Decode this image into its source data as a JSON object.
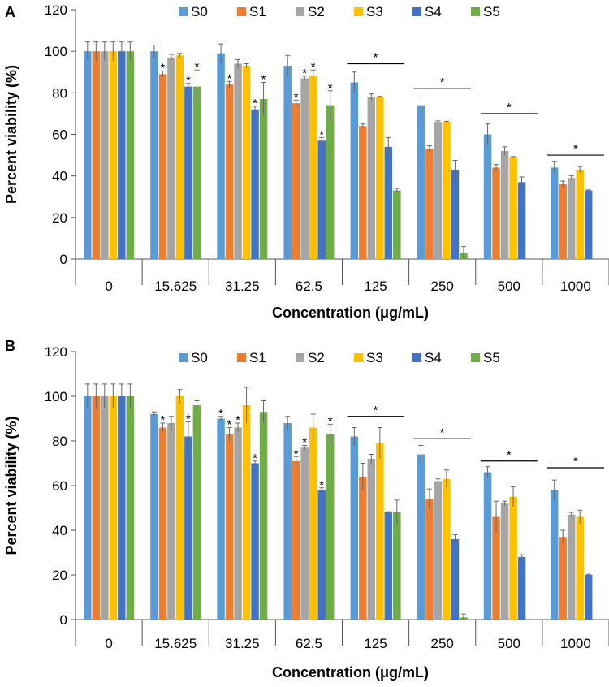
{
  "chart_data": [
    {
      "panel_label": "A",
      "type": "bar",
      "xlabel": "Concentration (μg/mL)",
      "ylabel": "Percent viability (%)",
      "ylim": [
        0,
        120
      ],
      "ytick_step": 20,
      "yticks": [
        "0",
        "20",
        "40",
        "60",
        "80",
        "100",
        "120"
      ],
      "categories": [
        "0",
        "15.625",
        "31.25",
        "62.5",
        "125",
        "250",
        "500",
        "1000"
      ],
      "legend_position": "top",
      "series": [
        {
          "name": "S0",
          "color": "#5b9bd5",
          "values": [
            100,
            100,
            99,
            93,
            85,
            74,
            60,
            44
          ],
          "errors": [
            4.5,
            3,
            4.5,
            5,
            5,
            4,
            5,
            3
          ]
        },
        {
          "name": "S1",
          "color": "#ed7d31",
          "values": [
            100,
            89,
            84,
            75,
            64,
            53,
            44,
            36
          ],
          "errors": [
            4.5,
            1.5,
            1.5,
            1.5,
            1,
            1.5,
            1.5,
            1.5
          ]
        },
        {
          "name": "S2",
          "color": "#a5a5a5",
          "values": [
            100,
            97,
            94,
            87,
            78,
            66,
            52,
            39
          ],
          "errors": [
            4.5,
            1.5,
            2,
            1,
            1.5,
            0.5,
            2,
            1
          ]
        },
        {
          "name": "S3",
          "color": "#ffc000",
          "values": [
            100,
            98,
            93,
            88,
            78,
            66,
            49,
            43
          ],
          "errors": [
            4.5,
            1,
            1,
            3,
            0.3,
            0.3,
            0.3,
            1.5
          ]
        },
        {
          "name": "S4",
          "color": "#4472c4",
          "values": [
            100,
            83,
            72,
            57,
            54,
            43,
            37,
            33
          ],
          "errors": [
            4.5,
            1.5,
            1.5,
            1.5,
            4.5,
            4.5,
            2.5,
            0.3
          ]
        },
        {
          "name": "S5",
          "color": "#70ad47",
          "values": [
            100,
            83,
            77,
            74,
            33,
            3,
            0,
            0
          ],
          "errors": [
            4.5,
            8,
            8,
            7,
            1,
            3,
            0,
            0
          ]
        }
      ],
      "annotations": [
        {
          "text": "*",
          "category": "15.625",
          "series": [
            "S1",
            "S4",
            "S5"
          ]
        },
        {
          "text": "*",
          "category": "31.25",
          "series": [
            "S1",
            "S4",
            "S5"
          ]
        },
        {
          "text": "*",
          "category": "62.5",
          "series": [
            "S1",
            "S2",
            "S3",
            "S4",
            "S5"
          ]
        },
        {
          "text": "*",
          "category": "125",
          "bracket": true,
          "value": 94
        },
        {
          "text": "*",
          "category": "250",
          "bracket": true,
          "value": 82
        },
        {
          "text": "*",
          "category": "500",
          "bracket": true,
          "value": 70
        },
        {
          "text": "*",
          "category": "1000",
          "bracket": true,
          "value": 50
        }
      ]
    },
    {
      "panel_label": "B",
      "type": "bar",
      "xlabel": "Concentration (μg/mL)",
      "ylabel": "Percent viability (%)",
      "ylim": [
        0,
        120
      ],
      "ytick_step": 20,
      "yticks": [
        "0",
        "20",
        "40",
        "60",
        "80",
        "100",
        "120"
      ],
      "categories": [
        "0",
        "15.625",
        "31.25",
        "62.5",
        "125",
        "250",
        "500",
        "1000"
      ],
      "legend_position": "top",
      "series": [
        {
          "name": "S0",
          "color": "#5b9bd5",
          "values": [
            100,
            92,
            90,
            88,
            82,
            74,
            66,
            58
          ],
          "errors": [
            5.5,
            1,
            1,
            3,
            4,
            4,
            2.5,
            4.5
          ]
        },
        {
          "name": "S1",
          "color": "#ed7d31",
          "values": [
            100,
            86,
            83,
            71,
            64,
            54,
            46,
            37
          ],
          "errors": [
            5.5,
            2,
            3,
            2,
            6,
            4.5,
            7,
            3
          ]
        },
        {
          "name": "S2",
          "color": "#a5a5a5",
          "values": [
            100,
            88,
            86,
            77,
            72,
            62,
            52,
            47
          ],
          "errors": [
            5.5,
            3,
            2,
            1,
            2,
            1,
            1,
            1
          ]
        },
        {
          "name": "S3",
          "color": "#ffc000",
          "values": [
            100,
            100,
            96,
            86,
            79,
            63,
            55,
            46
          ],
          "errors": [
            5.5,
            3,
            8,
            6,
            7,
            4,
            4.5,
            3
          ]
        },
        {
          "name": "S4",
          "color": "#4472c4",
          "values": [
            100,
            82,
            70,
            58,
            48,
            36,
            28,
            20
          ],
          "errors": [
            5.5,
            6.5,
            1,
            1,
            0.3,
            2,
            1,
            0.3
          ]
        },
        {
          "name": "S5",
          "color": "#70ad47",
          "values": [
            100,
            96,
            93,
            83,
            48,
            1,
            0,
            0
          ],
          "errors": [
            5.5,
            2,
            5,
            4.5,
            5.5,
            1.5,
            0,
            0
          ]
        }
      ],
      "annotations": [
        {
          "text": "*",
          "category": "15.625",
          "series": [
            "S1",
            "S4"
          ]
        },
        {
          "text": "*",
          "category": "31.25",
          "series": [
            "S0",
            "S1",
            "S2",
            "S4"
          ]
        },
        {
          "text": "*",
          "category": "62.5",
          "series": [
            "S1",
            "S2",
            "S4",
            "S5"
          ]
        },
        {
          "text": "*",
          "category": "125",
          "bracket": true,
          "value": 91
        },
        {
          "text": "*",
          "category": "250",
          "bracket": true,
          "value": 81
        },
        {
          "text": "*",
          "category": "500",
          "bracket": true,
          "value": 71
        },
        {
          "text": "*",
          "category": "1000",
          "bracket": true,
          "value": 68
        }
      ]
    }
  ]
}
